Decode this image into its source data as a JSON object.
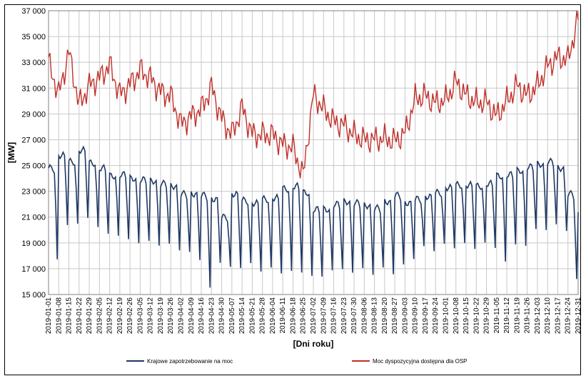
{
  "chart_data": {
    "type": "line",
    "title": "",
    "xlabel": "[Dni roku]",
    "ylabel": "[MW]",
    "ylim": [
      15000,
      37000
    ],
    "y_ticks": [
      "15 000",
      "17 000",
      "19 000",
      "21 000",
      "23 000",
      "25 000",
      "27 000",
      "29 000",
      "31 000",
      "33 000",
      "35 000",
      "37 000"
    ],
    "y_tick_values": [
      15000,
      17000,
      19000,
      21000,
      23000,
      25000,
      27000,
      29000,
      31000,
      33000,
      35000,
      37000
    ],
    "x_tick_labels": [
      "2019-01-01",
      "2019-01-08",
      "2019-01-15",
      "2019-01-22",
      "2019-01-29",
      "2019-02-05",
      "2019-02-12",
      "2019-02-19",
      "2019-02-26",
      "2019-03-05",
      "2019-03-12",
      "2019-03-19",
      "2019-03-26",
      "2019-04-02",
      "2019-04-09",
      "2019-04-16",
      "2019-04-23",
      "2019-04-30",
      "2019-05-07",
      "2019-05-14",
      "2019-05-21",
      "2019-05-28",
      "2019-06-04",
      "2019-06-11",
      "2019-06-18",
      "2019-06-25",
      "2019-07-02",
      "2019-07-09",
      "2019-07-16",
      "2019-07-23",
      "2019-07-30",
      "2019-08-06",
      "2019-08-13",
      "2019-08-20",
      "2019-08-27",
      "2019-09-03",
      "2019-09-10",
      "2019-09-17",
      "2019-09-24",
      "2019-10-01",
      "2019-10-08",
      "2019-10-15",
      "2019-10-22",
      "2019-10-29",
      "2019-11-05",
      "2019-11-12",
      "2019-11-19",
      "2019-11-26",
      "2019-12-03",
      "2019-12-10",
      "2019-12-17",
      "2019-12-24",
      "2019-12-31"
    ],
    "grid": true,
    "legend_position": "bottom",
    "series": [
      {
        "name": "Krajowe zapotrzebowanie na moc",
        "color": "#1f3864",
        "x": [
          "2019-01-01",
          "2019-01-08",
          "2019-01-15",
          "2019-01-22",
          "2019-01-29",
          "2019-02-05",
          "2019-02-12",
          "2019-02-19",
          "2019-02-26",
          "2019-03-05",
          "2019-03-12",
          "2019-03-19",
          "2019-03-26",
          "2019-04-02",
          "2019-04-09",
          "2019-04-16",
          "2019-04-23",
          "2019-04-30",
          "2019-05-07",
          "2019-05-14",
          "2019-05-21",
          "2019-05-28",
          "2019-06-04",
          "2019-06-11",
          "2019-06-18",
          "2019-06-25",
          "2019-07-02",
          "2019-07-09",
          "2019-07-16",
          "2019-07-23",
          "2019-07-30",
          "2019-08-06",
          "2019-08-13",
          "2019-08-20",
          "2019-08-27",
          "2019-09-03",
          "2019-09-10",
          "2019-09-17",
          "2019-09-24",
          "2019-10-01",
          "2019-10-08",
          "2019-10-15",
          "2019-10-22",
          "2019-10-29",
          "2019-11-05",
          "2019-11-12",
          "2019-11-19",
          "2019-11-26",
          "2019-12-03",
          "2019-12-10",
          "2019-12-17",
          "2019-12-24",
          "2019-12-31"
        ],
        "weekday": [
          24800,
          25800,
          25300,
          26200,
          25200,
          24800,
          24200,
          24300,
          24000,
          23900,
          23800,
          23600,
          23400,
          22800,
          22800,
          22700,
          22400,
          21000,
          22800,
          22300,
          22100,
          22400,
          22500,
          23200,
          23400,
          22900,
          21600,
          21600,
          22000,
          22200,
          22100,
          21900,
          21700,
          22200,
          22700,
          22100,
          22400,
          22600,
          22900,
          23300,
          23500,
          23500,
          23400,
          23600,
          24200,
          24300,
          24600,
          24900,
          25100,
          25300,
          24800,
          22800,
          21200
        ],
        "weekend": [
          17500,
          20600,
          20300,
          21100,
          20100,
          19800,
          19500,
          19300,
          19000,
          19100,
          18900,
          18800,
          18600,
          18100,
          17900,
          15300,
          17700,
          16900,
          17300,
          17200,
          17000,
          16900,
          16800,
          16700,
          16800,
          16400,
          16400,
          16900,
          16900,
          16800,
          16900,
          16700,
          16900,
          16800,
          17100,
          18000,
          18500,
          18600,
          18700,
          18800,
          18800,
          18700,
          18900,
          18700,
          17500,
          18900,
          18800,
          20000,
          20100,
          20300,
          20100,
          16000,
          19400
        ]
      },
      {
        "name": "Moc dyspozycyjna dostępna dla OSP",
        "color": "#c0302a",
        "x": [
          "2019-01-01",
          "2019-01-08",
          "2019-01-15",
          "2019-01-22",
          "2019-01-29",
          "2019-02-05",
          "2019-02-12",
          "2019-02-19",
          "2019-02-26",
          "2019-03-05",
          "2019-03-12",
          "2019-03-19",
          "2019-03-26",
          "2019-04-02",
          "2019-04-09",
          "2019-04-16",
          "2019-04-23",
          "2019-04-30",
          "2019-05-07",
          "2019-05-14",
          "2019-05-21",
          "2019-05-28",
          "2019-06-04",
          "2019-06-11",
          "2019-06-18",
          "2019-06-25",
          "2019-07-02",
          "2019-07-09",
          "2019-07-16",
          "2019-07-23",
          "2019-07-30",
          "2019-08-06",
          "2019-08-13",
          "2019-08-20",
          "2019-08-27",
          "2019-09-03",
          "2019-09-10",
          "2019-09-17",
          "2019-09-24",
          "2019-10-01",
          "2019-10-08",
          "2019-10-15",
          "2019-10-22",
          "2019-10-29",
          "2019-11-05",
          "2019-11-12",
          "2019-11-19",
          "2019-11-26",
          "2019-12-03",
          "2019-12-10",
          "2019-12-17",
          "2019-12-24",
          "2019-12-31"
        ],
        "values": [
          33000,
          30500,
          33800,
          29700,
          31200,
          31800,
          32800,
          30500,
          31300,
          32400,
          31800,
          30700,
          30400,
          28200,
          28800,
          29400,
          31100,
          28600,
          27400,
          29500,
          27400,
          27400,
          27400,
          26600,
          26400,
          24200,
          30500,
          29400,
          28400,
          28100,
          27400,
          27000,
          27000,
          27100,
          26900,
          27500,
          30200,
          30400,
          29800,
          30100,
          31500,
          30400,
          29900,
          29900,
          28800,
          30000,
          31200,
          30400,
          31200,
          32700,
          33400,
          33200,
          36400
        ]
      }
    ]
  }
}
